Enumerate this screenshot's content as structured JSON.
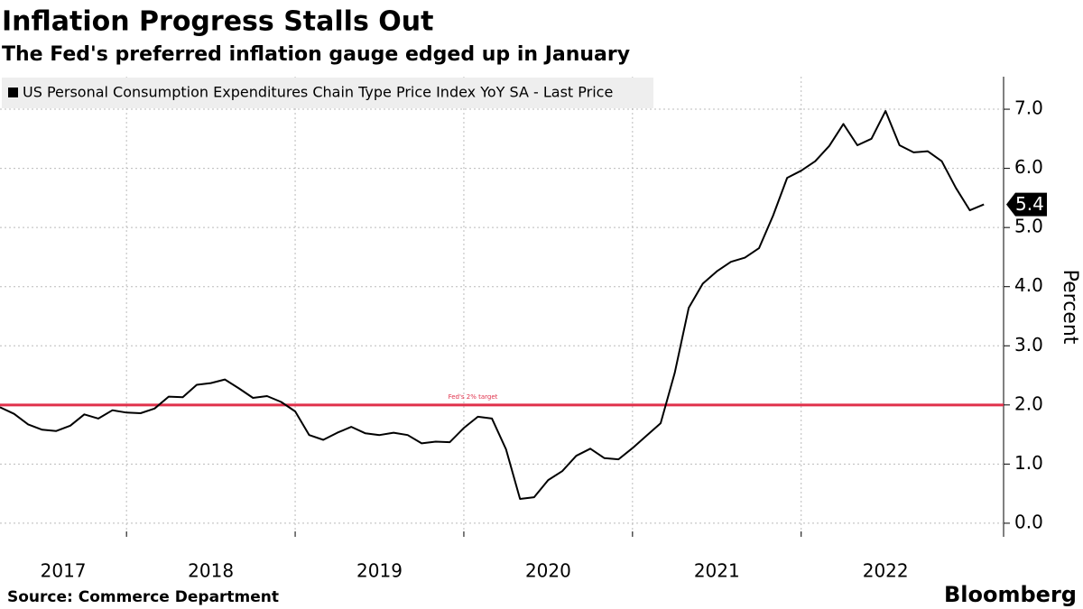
{
  "chart_data": {
    "type": "line",
    "title": "Inflation Progress Stalls Out",
    "subtitle": "The Fed's preferred inflation gauge edged up in January",
    "ylabel": "Percent",
    "source": "Source: Commerce Department",
    "brand": "Bloomberg",
    "x": [
      2017.25,
      2017.3333,
      2017.4167,
      2017.5,
      2017.5833,
      2017.6667,
      2017.75,
      2017.8333,
      2017.9167,
      2018.0,
      2018.0833,
      2018.1667,
      2018.25,
      2018.3333,
      2018.4167,
      2018.5,
      2018.5833,
      2018.6667,
      2018.75,
      2018.8333,
      2018.9167,
      2019.0,
      2019.0833,
      2019.1667,
      2019.25,
      2019.3333,
      2019.4167,
      2019.5,
      2019.5833,
      2019.6667,
      2019.75,
      2019.8333,
      2019.9167,
      2020.0,
      2020.0833,
      2020.1667,
      2020.25,
      2020.3333,
      2020.4167,
      2020.5,
      2020.5833,
      2020.6667,
      2020.75,
      2020.8333,
      2020.9167,
      2021.0,
      2021.0833,
      2021.1667,
      2021.25,
      2021.3333,
      2021.4167,
      2021.5,
      2021.5833,
      2021.6667,
      2021.75,
      2021.8333,
      2021.9167,
      2022.0,
      2022.0833,
      2022.1667,
      2022.25,
      2022.3333,
      2022.4167,
      2022.5,
      2022.5833,
      2022.6667,
      2022.75,
      2022.8333,
      2022.9167,
      2023.0,
      2023.0833
    ],
    "series": [
      {
        "name": "US Personal Consumption Expenditures Chain Type Price Index YoY SA - Last Price",
        "color": "#000000",
        "values": [
          1.96,
          1.85,
          1.67,
          1.58,
          1.56,
          1.65,
          1.84,
          1.77,
          1.91,
          1.87,
          1.86,
          1.94,
          2.14,
          2.13,
          2.34,
          2.37,
          2.43,
          2.28,
          2.12,
          2.15,
          2.05,
          1.89,
          1.49,
          1.41,
          1.53,
          1.63,
          1.52,
          1.49,
          1.53,
          1.49,
          1.35,
          1.38,
          1.37,
          1.61,
          1.8,
          1.77,
          1.25,
          0.41,
          0.44,
          0.73,
          0.88,
          1.14,
          1.26,
          1.1,
          1.08,
          1.27,
          1.48,
          1.69,
          2.54,
          3.64,
          4.05,
          4.26,
          4.42,
          4.49,
          4.65,
          5.2,
          5.84,
          5.96,
          6.12,
          6.38,
          6.75,
          6.39,
          6.5,
          6.97,
          6.39,
          6.27,
          6.29,
          6.12,
          5.67,
          5.29,
          5.39
        ]
      }
    ],
    "last_price_label": "5.4",
    "reference_line": {
      "value": 2,
      "label": "Fed's 2% target",
      "color": "#e0314b"
    },
    "xlim": [
      2017.25,
      2023.2
    ],
    "xticks": [
      2017,
      2018,
      2019,
      2020,
      2021,
      2022
    ],
    "ylim": [
      -0.23,
      7.55
    ],
    "yticks": [
      {
        "value": 0,
        "label": "0.0"
      },
      {
        "value": 1,
        "label": "1.0"
      },
      {
        "value": 2,
        "label": "2.0"
      },
      {
        "value": 3,
        "label": "3.0"
      },
      {
        "value": 4,
        "label": "4.0"
      },
      {
        "value": 5,
        "label": "5.0"
      },
      {
        "value": 6,
        "label": "6.0"
      },
      {
        "value": 7,
        "label": "7.0"
      }
    ],
    "grid": true
  }
}
